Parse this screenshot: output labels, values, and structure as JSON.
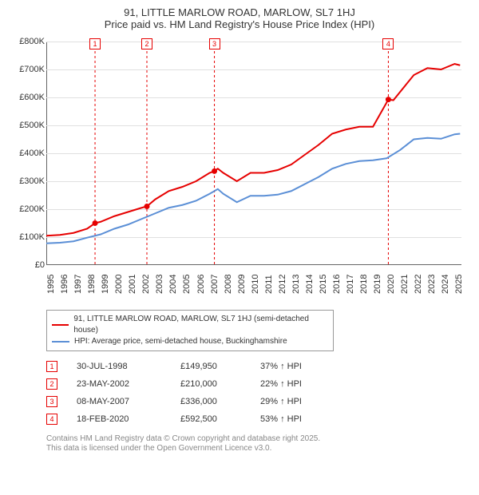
{
  "title_line1": "91, LITTLE MARLOW ROAD, MARLOW, SL7 1HJ",
  "title_line2": "Price paid vs. HM Land Registry's House Price Index (HPI)",
  "chart": {
    "type": "line",
    "background_color": "#ffffff",
    "grid_color": "#e0e0e0",
    "axis_color": "#666666",
    "axis_label_fontsize": 11,
    "ylim": [
      0,
      800000
    ],
    "ytick_step": 100000,
    "yticks": [
      "£0",
      "£100K",
      "£200K",
      "£300K",
      "£400K",
      "£500K",
      "£600K",
      "£700K",
      "£800K"
    ],
    "xlim": [
      1995,
      2025.5
    ],
    "xticks": [
      1995,
      1996,
      1997,
      1998,
      1999,
      2000,
      2001,
      2002,
      2003,
      2004,
      2005,
      2006,
      2007,
      2008,
      2009,
      2010,
      2011,
      2012,
      2013,
      2014,
      2015,
      2016,
      2017,
      2018,
      2019,
      2020,
      2021,
      2022,
      2023,
      2024,
      2025
    ],
    "series": [
      {
        "name": "91, LITTLE MARLOW ROAD, MARLOW, SL7 1HJ (semi-detached house)",
        "color": "#e60000",
        "line_width": 2,
        "data": [
          [
            1995,
            105000
          ],
          [
            1996,
            108000
          ],
          [
            1997,
            115000
          ],
          [
            1998,
            130000
          ],
          [
            1998.58,
            149950
          ],
          [
            1999,
            155000
          ],
          [
            2000,
            175000
          ],
          [
            2001,
            190000
          ],
          [
            2002,
            205000
          ],
          [
            2002.39,
            210000
          ],
          [
            2003,
            235000
          ],
          [
            2004,
            265000
          ],
          [
            2005,
            280000
          ],
          [
            2006,
            300000
          ],
          [
            2007,
            330000
          ],
          [
            2007.35,
            336000
          ],
          [
            2007.6,
            345000
          ],
          [
            2008,
            330000
          ],
          [
            2009,
            300000
          ],
          [
            2010,
            330000
          ],
          [
            2011,
            330000
          ],
          [
            2012,
            340000
          ],
          [
            2013,
            360000
          ],
          [
            2014,
            395000
          ],
          [
            2015,
            430000
          ],
          [
            2016,
            470000
          ],
          [
            2017,
            485000
          ],
          [
            2018,
            495000
          ],
          [
            2019,
            495000
          ],
          [
            2020.13,
            592500
          ],
          [
            2020.5,
            590000
          ],
          [
            2021,
            620000
          ],
          [
            2022,
            680000
          ],
          [
            2023,
            705000
          ],
          [
            2024,
            700000
          ],
          [
            2025,
            720000
          ],
          [
            2025.4,
            715000
          ]
        ]
      },
      {
        "name": "HPI: Average price, semi-detached house, Buckinghamshire",
        "color": "#5b8fd6",
        "line_width": 2,
        "data": [
          [
            1995,
            78000
          ],
          [
            1996,
            80000
          ],
          [
            1997,
            85000
          ],
          [
            1998,
            98000
          ],
          [
            1999,
            110000
          ],
          [
            2000,
            130000
          ],
          [
            2001,
            145000
          ],
          [
            2002,
            165000
          ],
          [
            2003,
            185000
          ],
          [
            2004,
            205000
          ],
          [
            2005,
            215000
          ],
          [
            2006,
            230000
          ],
          [
            2007,
            255000
          ],
          [
            2007.6,
            272000
          ],
          [
            2008,
            255000
          ],
          [
            2009,
            225000
          ],
          [
            2010,
            248000
          ],
          [
            2011,
            248000
          ],
          [
            2012,
            252000
          ],
          [
            2013,
            265000
          ],
          [
            2014,
            290000
          ],
          [
            2015,
            315000
          ],
          [
            2016,
            345000
          ],
          [
            2017,
            362000
          ],
          [
            2018,
            372000
          ],
          [
            2019,
            375000
          ],
          [
            2020,
            382000
          ],
          [
            2021,
            412000
          ],
          [
            2022,
            450000
          ],
          [
            2023,
            455000
          ],
          [
            2024,
            452000
          ],
          [
            2025,
            468000
          ],
          [
            2025.4,
            470000
          ]
        ]
      }
    ],
    "markers": [
      {
        "n": "1",
        "x": 1998.58,
        "color": "#e60000"
      },
      {
        "n": "2",
        "x": 2002.39,
        "color": "#e60000"
      },
      {
        "n": "3",
        "x": 2007.35,
        "color": "#e60000"
      },
      {
        "n": "4",
        "x": 2020.13,
        "color": "#e60000"
      }
    ]
  },
  "legend": {
    "border_color": "#999999",
    "fontsize": 10
  },
  "sales": [
    {
      "n": "1",
      "date": "30-JUL-1998",
      "price": "£149,950",
      "diff": "37% ↑ HPI",
      "color": "#e60000"
    },
    {
      "n": "2",
      "date": "23-MAY-2002",
      "price": "£210,000",
      "diff": "22% ↑ HPI",
      "color": "#e60000"
    },
    {
      "n": "3",
      "date": "08-MAY-2007",
      "price": "£336,000",
      "diff": "29% ↑ HPI",
      "color": "#e60000"
    },
    {
      "n": "4",
      "date": "18-FEB-2020",
      "price": "£592,500",
      "diff": "53% ↑ HPI",
      "color": "#e60000"
    }
  ],
  "footnote_line1": "Contains HM Land Registry data © Crown copyright and database right 2025.",
  "footnote_line2": "This data is licensed under the Open Government Licence v3.0."
}
